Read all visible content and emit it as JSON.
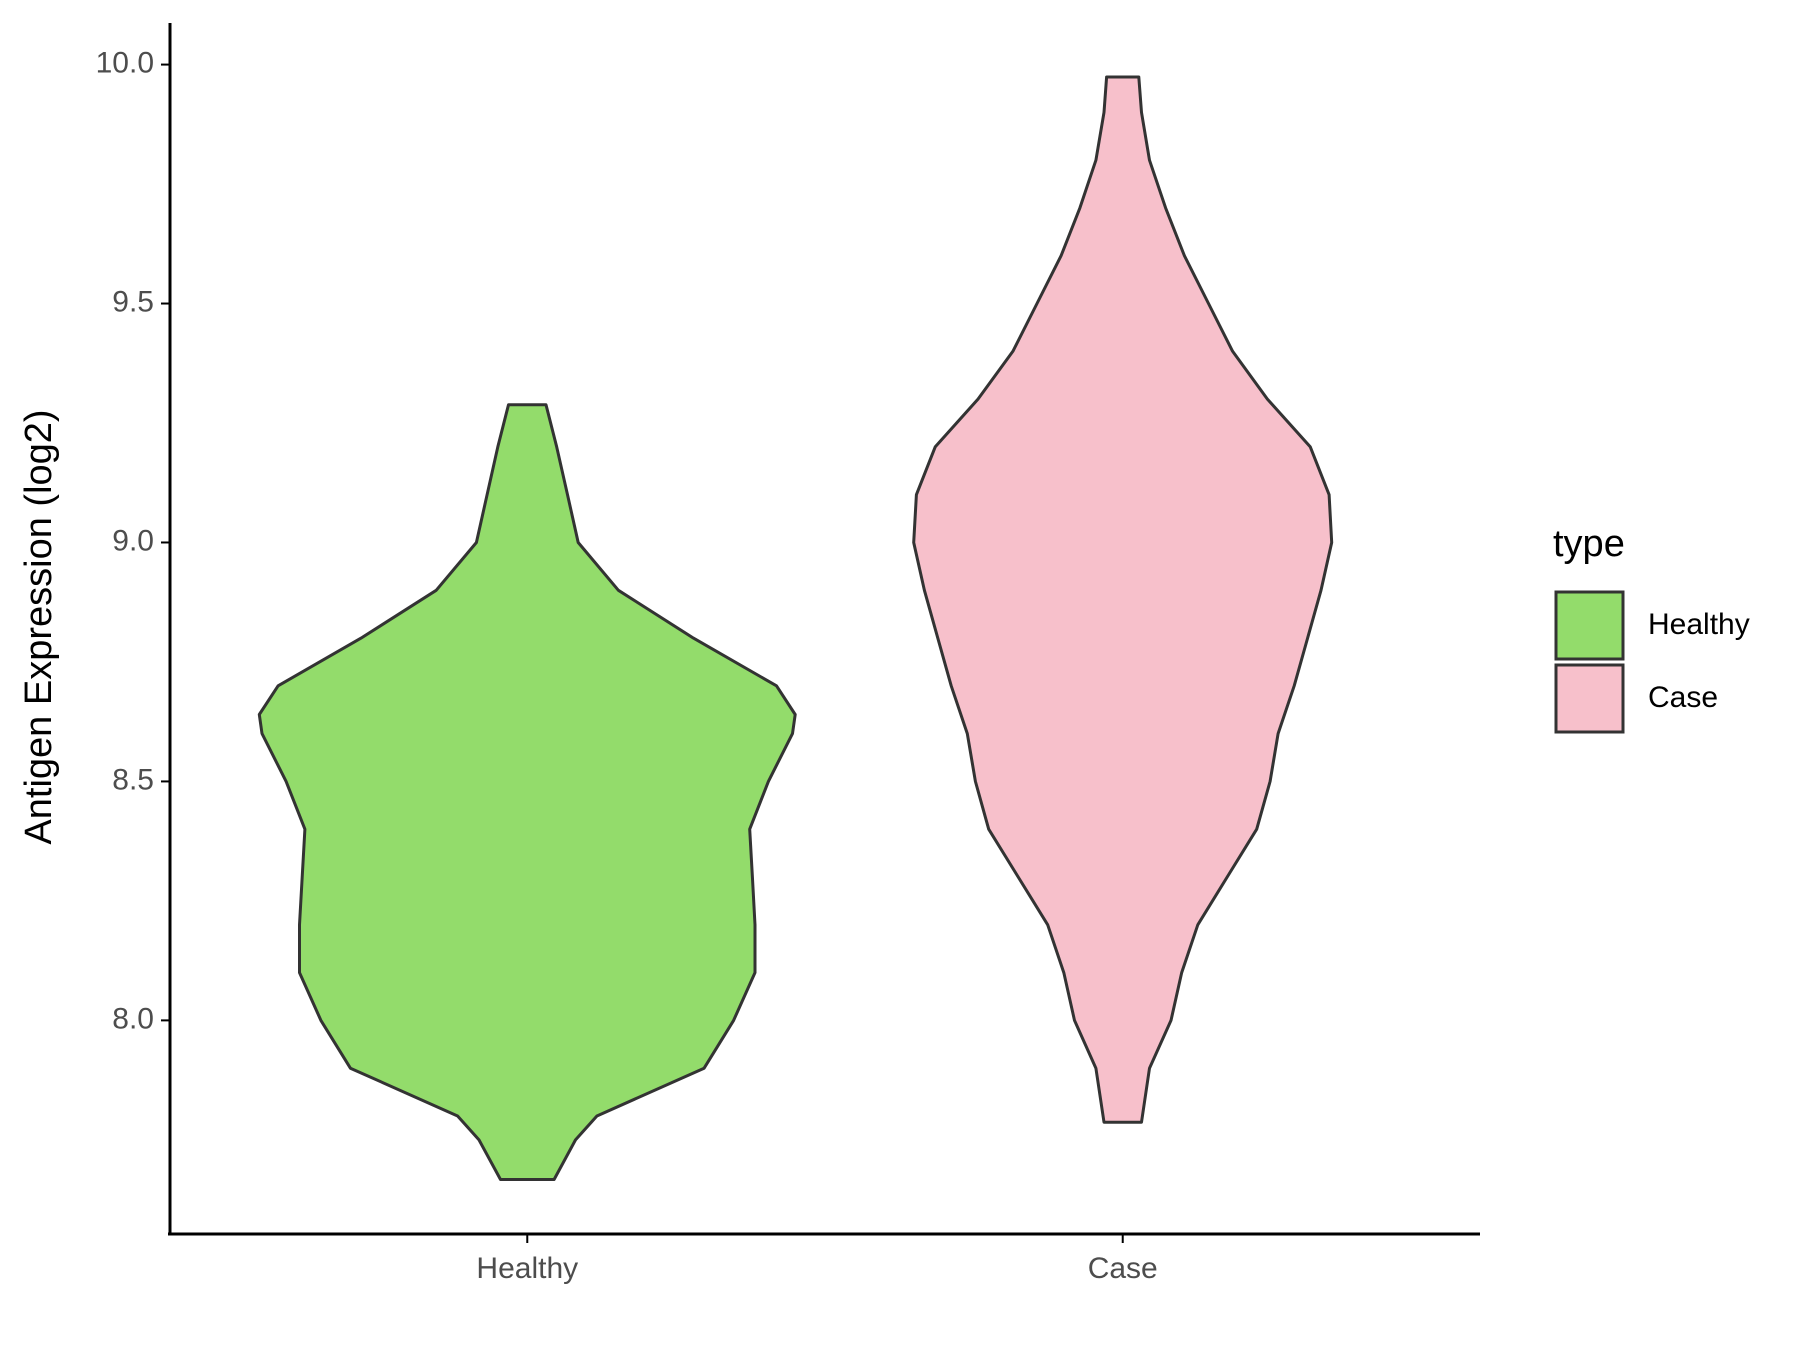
{
  "chart_data": {
    "type": "violin",
    "y_label": "Antigen Expression (log2)",
    "categories": [
      "Healthy",
      "Case"
    ],
    "legend_title": "type",
    "ylim": [
      7.553,
      10.087
    ],
    "yticks": [
      {
        "value": 8,
        "label": "8.0"
      },
      8.5,
      {
        "value": 9,
        "label": "9.0"
      },
      9.5,
      {
        "value": 10,
        "label": "10.0"
      }
    ],
    "series": [
      {
        "name": "Healthy",
        "color": "#93dc6b",
        "y": [
          7.667,
          7.75,
          7.8,
          7.9,
          8.0,
          8.1,
          8.2,
          8.3,
          8.4,
          8.5,
          8.6,
          8.64,
          8.7,
          8.8,
          8.9,
          9.0,
          9.1,
          9.2,
          9.288
        ],
        "density": [
          0.1,
          0.18,
          0.26,
          0.66,
          0.77,
          0.85,
          0.85,
          0.84,
          0.83,
          0.9,
          0.99,
          1.0,
          0.93,
          0.62,
          0.34,
          0.19,
          0.15,
          0.11,
          0.07
        ]
      },
      {
        "name": "Case",
        "color": "#f7c0cb",
        "y": [
          7.787,
          7.9,
          8.0,
          8.1,
          8.2,
          8.3,
          8.4,
          8.5,
          8.6,
          8.7,
          8.8,
          8.9,
          9.0,
          9.1,
          9.2,
          9.3,
          9.4,
          9.5,
          9.6,
          9.7,
          9.8,
          9.9,
          9.974
        ],
        "density": [
          0.07,
          0.1,
          0.18,
          0.22,
          0.28,
          0.39,
          0.5,
          0.55,
          0.58,
          0.64,
          0.69,
          0.74,
          0.78,
          0.77,
          0.7,
          0.54,
          0.41,
          0.32,
          0.23,
          0.16,
          0.1,
          0.07,
          0.06
        ]
      }
    ]
  }
}
